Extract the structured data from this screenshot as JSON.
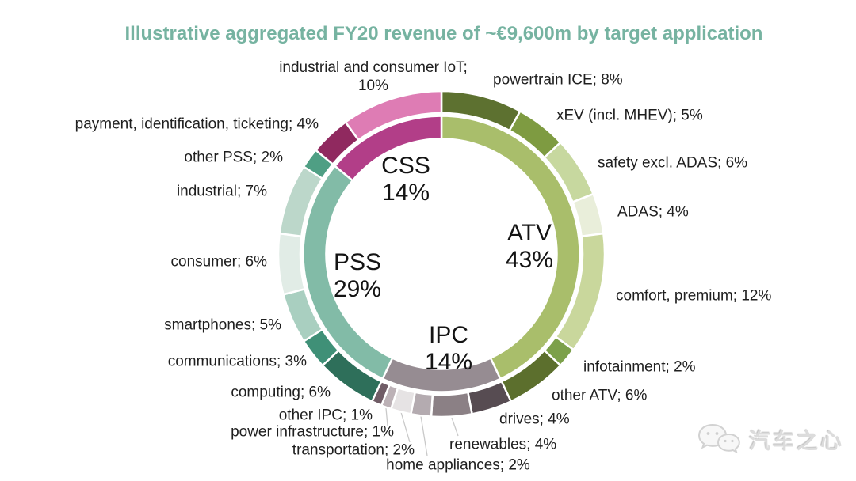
{
  "title": {
    "text": "Illustrative aggregated FY20 revenue of ~€9,600m by target application",
    "color": "#76b3a1"
  },
  "chart_data": {
    "type": "donut",
    "title": "Illustrative aggregated FY20 revenue of ~€9,600m by target application",
    "total_revenue": "~€9,600m",
    "start_angle_deg": 0,
    "direction": "clockwise",
    "label_format": "name; value%",
    "inner_ring": [
      {
        "id": "atv",
        "label": "ATV",
        "value": 43,
        "color": "#a9be6b"
      },
      {
        "id": "ipc",
        "label": "IPC",
        "value": 14,
        "color": "#968c92"
      },
      {
        "id": "pss",
        "label": "PSS",
        "value": 29,
        "color": "#82bba7"
      },
      {
        "id": "css",
        "label": "CSS",
        "value": 14,
        "color": "#b23e88"
      }
    ],
    "outer_ring": [
      {
        "id": "powertrain-ice",
        "parent": "ATV",
        "label": "powertrain ICE",
        "value": 8,
        "color": "#5d7130"
      },
      {
        "id": "xev",
        "parent": "ATV",
        "label": "xEV (incl. MHEV)",
        "value": 5,
        "color": "#7e9b41"
      },
      {
        "id": "safety",
        "parent": "ATV",
        "label": "safety excl. ADAS",
        "value": 6,
        "color": "#c7d89f"
      },
      {
        "id": "adas",
        "parent": "ATV",
        "label": "ADAS",
        "value": 4,
        "color": "#e9eeda"
      },
      {
        "id": "comfort",
        "parent": "ATV",
        "label": "comfort, premium",
        "value": 12,
        "color": "#c9d79c"
      },
      {
        "id": "infotainment",
        "parent": "ATV",
        "label": "infotainment",
        "value": 2,
        "color": "#7ca04a"
      },
      {
        "id": "other-atv",
        "parent": "ATV",
        "label": "other ATV",
        "value": 6,
        "color": "#5c6f2d"
      },
      {
        "id": "drives",
        "parent": "IPC",
        "label": "drives",
        "value": 4,
        "color": "#574c52"
      },
      {
        "id": "renewables",
        "parent": "IPC",
        "label": "renewables",
        "value": 4,
        "color": "#8b8085"
      },
      {
        "id": "home-appliances",
        "parent": "IPC",
        "label": "home appliances",
        "value": 2,
        "color": "#b4abb0"
      },
      {
        "id": "transportation",
        "parent": "IPC",
        "label": "transportation",
        "value": 2,
        "color": "#e6e3e4"
      },
      {
        "id": "power-infrastructure",
        "parent": "IPC",
        "label": "power infrastructure",
        "value": 1,
        "color": "#bcb1b6"
      },
      {
        "id": "other-ipc",
        "parent": "IPC",
        "label": "other IPC",
        "value": 1,
        "color": "#705c66"
      },
      {
        "id": "computing",
        "parent": "PSS",
        "label": "computing",
        "value": 6,
        "color": "#2e6f5a"
      },
      {
        "id": "communications",
        "parent": "PSS",
        "label": "communications",
        "value": 3,
        "color": "#3f9077"
      },
      {
        "id": "smartphones",
        "parent": "PSS",
        "label": "smartphones",
        "value": 5,
        "color": "#a9cfc0"
      },
      {
        "id": "consumer",
        "parent": "PSS",
        "label": "consumer",
        "value": 6,
        "color": "#e1ece6"
      },
      {
        "id": "industrial",
        "parent": "PSS",
        "label": "industrial",
        "value": 7,
        "color": "#bcd7ca"
      },
      {
        "id": "other-pss",
        "parent": "PSS",
        "label": "other PSS",
        "value": 2,
        "color": "#4f9f84"
      },
      {
        "id": "payment",
        "parent": "CSS",
        "label": "payment, identification, ticketing",
        "value": 4,
        "color": "#90295f"
      },
      {
        "id": "iot",
        "parent": "CSS",
        "label": "industrial and consumer IoT",
        "value": 10,
        "color": "#de7cb4"
      }
    ]
  },
  "watermark": {
    "text": "汽车之心",
    "icon": "wechat-chat-bubbles-icon",
    "color": "#dcdcdc"
  }
}
